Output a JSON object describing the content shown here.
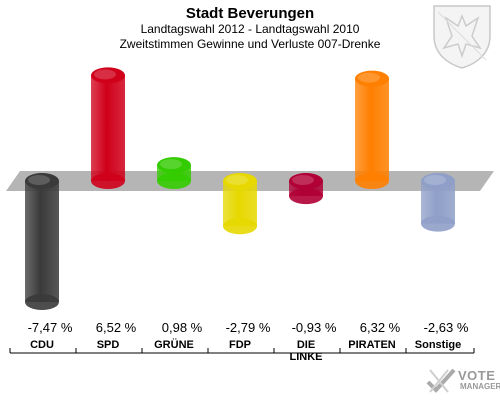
{
  "header": {
    "title": "Stadt Beverungen",
    "subtitle_1": "Landtagswahl 2012 - Landtagswahl 2010",
    "subtitle_2": "Zweitstimmen Gewinne und Verluste 007-Drenke"
  },
  "logo": {
    "word_1": "VOTE",
    "word_2": "MANAGER"
  },
  "crest": {
    "icon": "eagle-crest-icon"
  },
  "chart_data": {
    "type": "bar",
    "title": "Stadt Beverungen",
    "categories": [
      "CDU",
      "SPD",
      "GRÜNE",
      "FDP",
      "DIE LINKE",
      "PIRATEN",
      "Sonstige"
    ],
    "values": [
      -7.47,
      6.52,
      0.98,
      -2.79,
      -0.93,
      6.32,
      -2.63
    ],
    "value_labels": [
      "-7,47 %",
      "6,52 %",
      "0,98 %",
      "-2,79 %",
      "-0,93 %",
      "6,32 %",
      "-2,63 %"
    ],
    "colors": [
      "#3a3a3a",
      "#d0001a",
      "#33cc00",
      "#e6d800",
      "#b00035",
      "#ff7f00",
      "#8f9fc8"
    ],
    "ylim": [
      -8,
      8
    ],
    "xlabel": "",
    "ylabel": "",
    "grid": false,
    "legend": "none"
  }
}
